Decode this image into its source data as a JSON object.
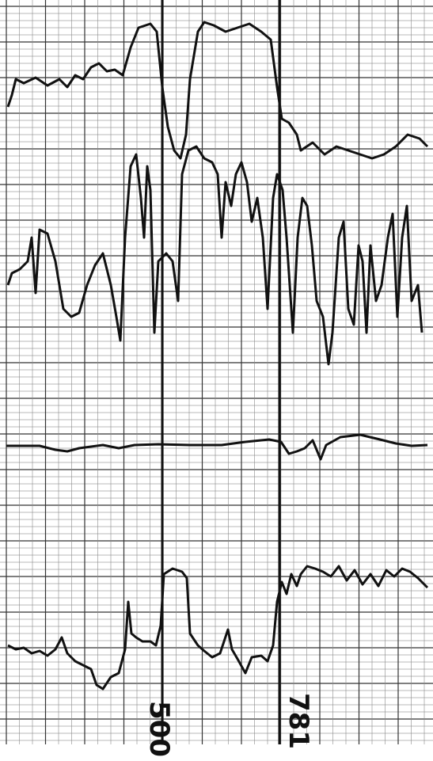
{
  "labels": [
    "500",
    "781"
  ]
}
